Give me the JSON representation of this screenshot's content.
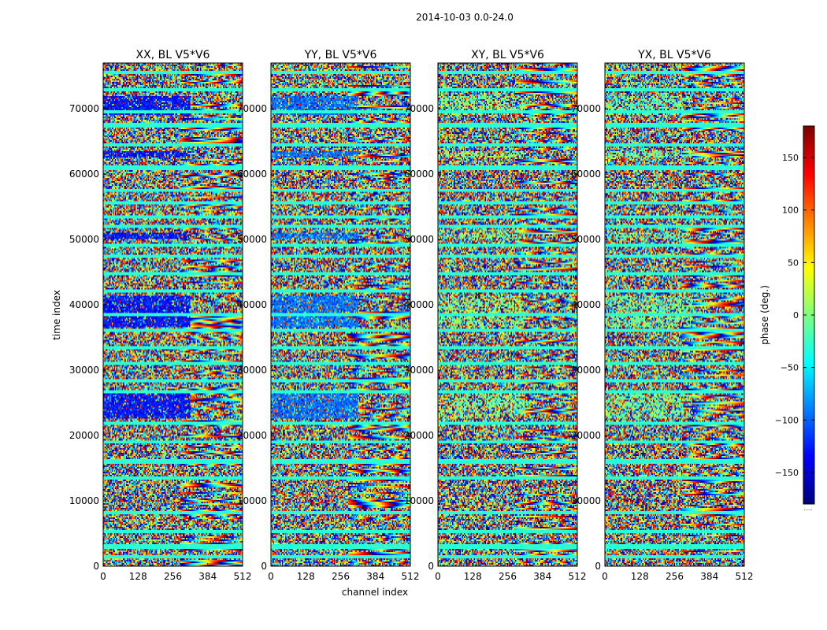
{
  "chart_data": {
    "type": "heatmap",
    "suptitle": "2014-10-03 0.0-24.0",
    "xlabel": "channel index",
    "ylabel": "time index",
    "xlim": [
      0,
      512
    ],
    "ylim": [
      0,
      77000
    ],
    "x_ticks": [
      0,
      128,
      256,
      384,
      512
    ],
    "y_ticks": [
      0,
      10000,
      20000,
      30000,
      40000,
      50000,
      60000,
      70000
    ],
    "x_tick_labels": [
      "0",
      "128",
      "256",
      "384",
      "512"
    ],
    "y_tick_labels": [
      "0",
      "10000",
      "20000",
      "30000",
      "40000",
      "50000",
      "60000",
      "70000"
    ],
    "panels": [
      {
        "title": "XX, BL V5*V6",
        "bias": -130,
        "bias_strength": 0.7
      },
      {
        "title": "YY, BL V5*V6",
        "bias": -95,
        "bias_strength": 0.6
      },
      {
        "title": "XY, BL V5*V6",
        "bias": 0,
        "bias_strength": 0.05
      },
      {
        "title": "YX, BL V5*V6",
        "bias": -10,
        "bias_strength": 0.1
      }
    ],
    "strong_bias_time_ranges": [
      [
        22500,
        27000
      ],
      [
        36500,
        41500
      ],
      [
        50000,
        51000
      ],
      [
        62500,
        63500
      ],
      [
        69000,
        72000
      ]
    ],
    "flagged_time_rows": [
      1500,
      3000,
      5200,
      8200,
      13500,
      16000,
      19000,
      22000,
      26800,
      28500,
      31000,
      33500,
      36000,
      38500,
      42000,
      44800,
      47300,
      49000,
      52000,
      53500,
      55500,
      57500,
      61000,
      64500,
      67500,
      69500,
      73000,
      75500
    ],
    "flagged_value": -30,
    "colorbar": {
      "label": "phase (deg.)",
      "range": [
        -180,
        180
      ],
      "ticks": [
        -150,
        -100,
        -50,
        0,
        50,
        100,
        150
      ],
      "tick_labels": [
        "−150",
        "−100",
        "−50",
        "0",
        "50",
        "100",
        "150"
      ],
      "colormap": "jet"
    }
  }
}
